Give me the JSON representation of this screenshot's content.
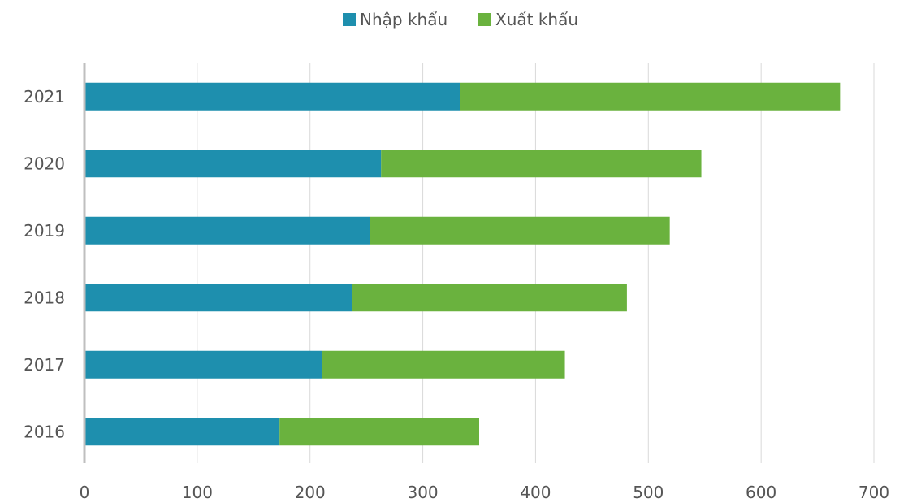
{
  "chart_data": {
    "type": "bar",
    "orientation": "horizontal",
    "stacked": true,
    "title": "",
    "xlabel": "",
    "ylabel": "",
    "categories": [
      "2016",
      "2017",
      "2018",
      "2019",
      "2020",
      "2021"
    ],
    "series": [
      {
        "name": "Nhập khẩu",
        "color": "#1e8fae",
        "values": [
          173,
          211,
          237,
          253,
          263,
          333
        ]
      },
      {
        "name": "Xuất khẩu",
        "color": "#6ab23e",
        "values": [
          177,
          215,
          244,
          266,
          284,
          337
        ]
      }
    ],
    "xlim": [
      0,
      700
    ],
    "x_ticks": [
      "0",
      "100",
      "200",
      "300",
      "400",
      "500",
      "600",
      "700"
    ],
    "grid": true,
    "legend_position": "top-center"
  }
}
